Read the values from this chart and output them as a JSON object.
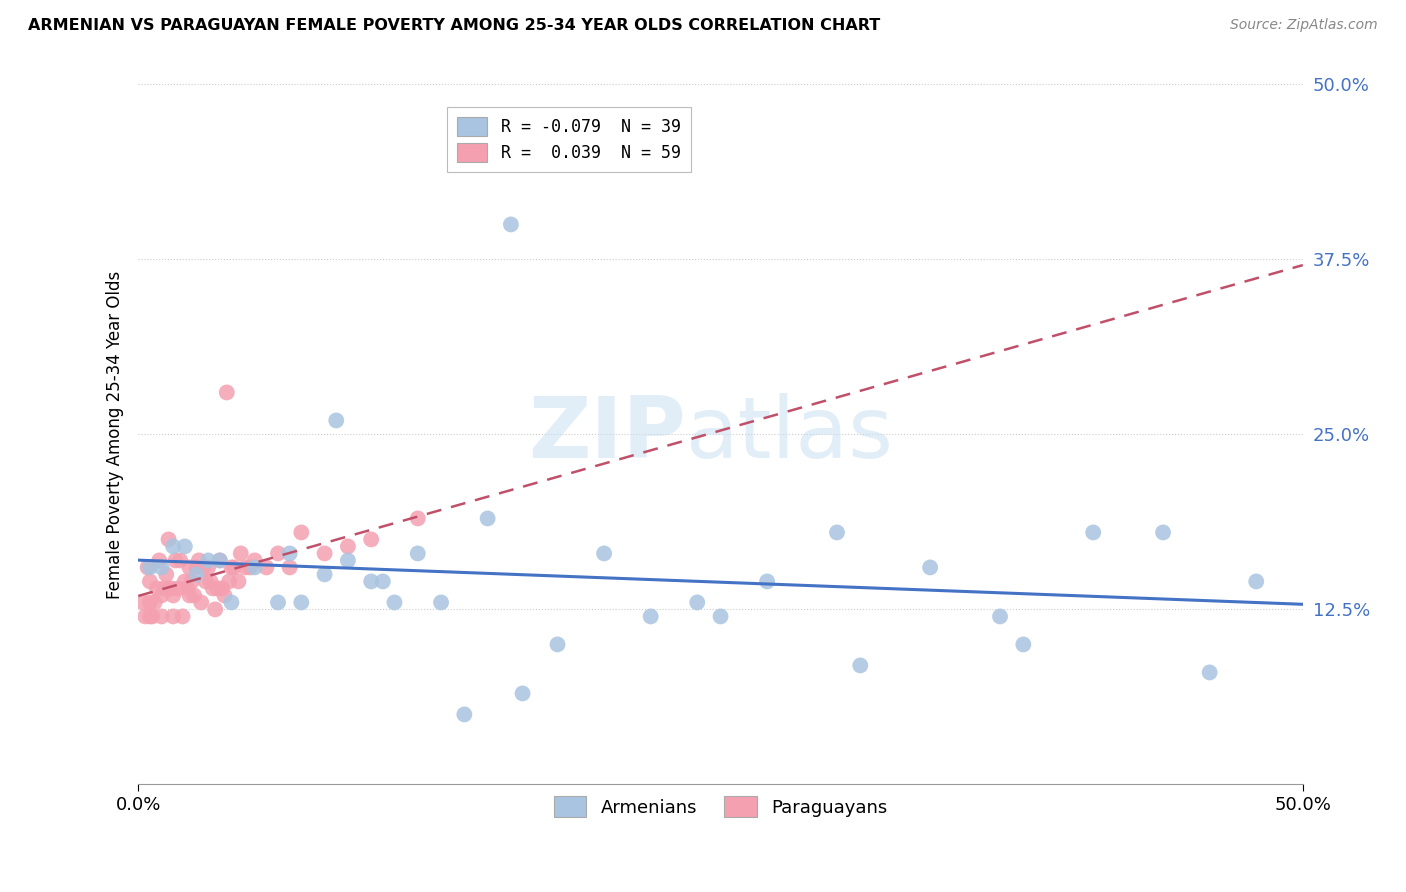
{
  "title": "ARMENIAN VS PARAGUAYAN FEMALE POVERTY AMONG 25-34 YEAR OLDS CORRELATION CHART",
  "source": "Source: ZipAtlas.com",
  "ylabel": "Female Poverty Among 25-34 Year Olds",
  "xlim": [
    0.0,
    0.5
  ],
  "ylim": [
    0.0,
    0.5
  ],
  "yticks": [
    0.125,
    0.25,
    0.375,
    0.5
  ],
  "ytick_labels": [
    "12.5%",
    "25.0%",
    "37.5%",
    "50.0%"
  ],
  "legend_armenian": "R = -0.079  N = 39",
  "legend_paraguayan": "R =  0.039  N = 59",
  "armenian_color": "#a8c4e0",
  "paraguayan_color": "#f4a0b0",
  "armenian_line_color": "#4472c4",
  "paraguayan_line_color": "#c0506a",
  "armenian_x": [
    0.005,
    0.01,
    0.015,
    0.02,
    0.025,
    0.03,
    0.035,
    0.04,
    0.05,
    0.06,
    0.065,
    0.07,
    0.08,
    0.085,
    0.09,
    0.1,
    0.105,
    0.11,
    0.12,
    0.13,
    0.14,
    0.15,
    0.16,
    0.165,
    0.18,
    0.2,
    0.22,
    0.24,
    0.25,
    0.27,
    0.3,
    0.31,
    0.34,
    0.37,
    0.38,
    0.41,
    0.44,
    0.46,
    0.48
  ],
  "armenian_y": [
    0.155,
    0.155,
    0.17,
    0.17,
    0.15,
    0.16,
    0.16,
    0.13,
    0.155,
    0.13,
    0.165,
    0.13,
    0.15,
    0.26,
    0.16,
    0.145,
    0.145,
    0.13,
    0.165,
    0.13,
    0.05,
    0.19,
    0.4,
    0.065,
    0.1,
    0.165,
    0.12,
    0.13,
    0.12,
    0.145,
    0.18,
    0.085,
    0.155,
    0.12,
    0.1,
    0.18,
    0.18,
    0.08,
    0.145
  ],
  "paraguayan_x": [
    0.002,
    0.003,
    0.004,
    0.005,
    0.005,
    0.005,
    0.006,
    0.007,
    0.008,
    0.009,
    0.01,
    0.01,
    0.011,
    0.012,
    0.013,
    0.013,
    0.014,
    0.015,
    0.015,
    0.016,
    0.017,
    0.018,
    0.019,
    0.02,
    0.021,
    0.022,
    0.022,
    0.023,
    0.024,
    0.025,
    0.026,
    0.027,
    0.028,
    0.029,
    0.03,
    0.031,
    0.032,
    0.033,
    0.034,
    0.035,
    0.036,
    0.037,
    0.038,
    0.039,
    0.04,
    0.041,
    0.043,
    0.044,
    0.046,
    0.048,
    0.05,
    0.055,
    0.06,
    0.065,
    0.07,
    0.08,
    0.09,
    0.1,
    0.12
  ],
  "paraguayan_y": [
    0.13,
    0.12,
    0.155,
    0.145,
    0.13,
    0.12,
    0.12,
    0.13,
    0.14,
    0.16,
    0.135,
    0.12,
    0.14,
    0.15,
    0.175,
    0.14,
    0.14,
    0.135,
    0.12,
    0.16,
    0.14,
    0.16,
    0.12,
    0.145,
    0.14,
    0.135,
    0.155,
    0.145,
    0.135,
    0.155,
    0.16,
    0.13,
    0.155,
    0.145,
    0.155,
    0.145,
    0.14,
    0.125,
    0.14,
    0.16,
    0.14,
    0.135,
    0.28,
    0.145,
    0.155,
    0.155,
    0.145,
    0.165,
    0.155,
    0.155,
    0.16,
    0.155,
    0.165,
    0.155,
    0.18,
    0.165,
    0.17,
    0.175,
    0.19
  ]
}
